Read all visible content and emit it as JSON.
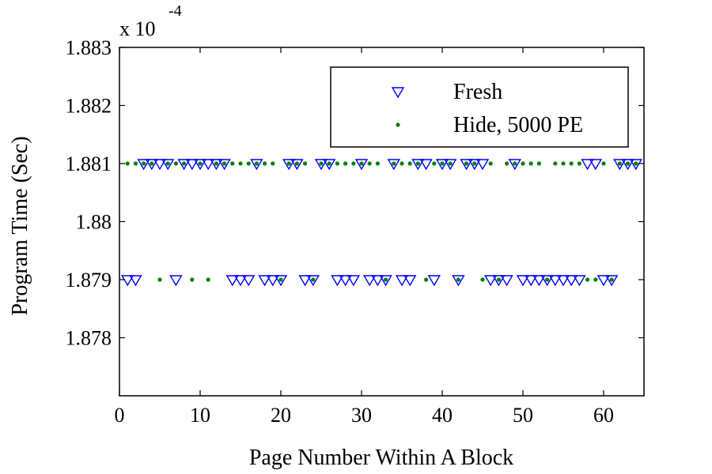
{
  "chart_data": {
    "type": "scatter",
    "xlabel": "Page Number Within A Block",
    "ylabel": "Program Time (Sec)",
    "exponent_label": "x 10",
    "exponent_power": "-4",
    "xlim": [
      0,
      65
    ],
    "ylim": [
      1.877,
      1.883
    ],
    "x_ticks": [
      0,
      10,
      20,
      30,
      40,
      50,
      60
    ],
    "x_tick_labels": [
      "0",
      "10",
      "20",
      "30",
      "40",
      "50",
      "60"
    ],
    "y_ticks": [
      1.878,
      1.879,
      1.88,
      1.881,
      1.882,
      1.883
    ],
    "y_tick_labels": [
      "1.878",
      "1.879",
      "1.88",
      "1.881",
      "1.882",
      "1.883"
    ],
    "grid": false,
    "legend_position": "top-right",
    "series": [
      {
        "name": "Fresh",
        "marker": "triangle-down",
        "color": "#0000ff",
        "points": [
          [
            1,
            1.879
          ],
          [
            2,
            1.879
          ],
          [
            3,
            1.881
          ],
          [
            4,
            1.881
          ],
          [
            5,
            1.881
          ],
          [
            6,
            1.881
          ],
          [
            7,
            1.879
          ],
          [
            8,
            1.881
          ],
          [
            9,
            1.881
          ],
          [
            10,
            1.881
          ],
          [
            11,
            1.881
          ],
          [
            12,
            1.881
          ],
          [
            13,
            1.881
          ],
          [
            14,
            1.879
          ],
          [
            15,
            1.879
          ],
          [
            16,
            1.879
          ],
          [
            17,
            1.881
          ],
          [
            18,
            1.879
          ],
          [
            19,
            1.879
          ],
          [
            20,
            1.879
          ],
          [
            21,
            1.881
          ],
          [
            22,
            1.881
          ],
          [
            23,
            1.879
          ],
          [
            24,
            1.879
          ],
          [
            25,
            1.881
          ],
          [
            26,
            1.881
          ],
          [
            27,
            1.879
          ],
          [
            28,
            1.879
          ],
          [
            29,
            1.879
          ],
          [
            30,
            1.881
          ],
          [
            31,
            1.879
          ],
          [
            32,
            1.879
          ],
          [
            33,
            1.879
          ],
          [
            34,
            1.881
          ],
          [
            35,
            1.879
          ],
          [
            36,
            1.879
          ],
          [
            37,
            1.881
          ],
          [
            38,
            1.881
          ],
          [
            39,
            1.879
          ],
          [
            40,
            1.881
          ],
          [
            41,
            1.881
          ],
          [
            42,
            1.879
          ],
          [
            43,
            1.881
          ],
          [
            44,
            1.881
          ],
          [
            45,
            1.881
          ],
          [
            46,
            1.879
          ],
          [
            47,
            1.879
          ],
          [
            48,
            1.879
          ],
          [
            49,
            1.881
          ],
          [
            50,
            1.879
          ],
          [
            51,
            1.879
          ],
          [
            52,
            1.879
          ],
          [
            53,
            1.879
          ],
          [
            54,
            1.879
          ],
          [
            55,
            1.879
          ],
          [
            56,
            1.879
          ],
          [
            57,
            1.879
          ],
          [
            58,
            1.881
          ],
          [
            59,
            1.881
          ],
          [
            60,
            1.879
          ],
          [
            61,
            1.879
          ],
          [
            62,
            1.881
          ],
          [
            63,
            1.881
          ],
          [
            64,
            1.881
          ]
        ]
      },
      {
        "name": "Hide, 5000 PE",
        "marker": "dot",
        "color": "#007f00",
        "points": [
          [
            1,
            1.881
          ],
          [
            2,
            1.881
          ],
          [
            3,
            1.881
          ],
          [
            4,
            1.881
          ],
          [
            5,
            1.879
          ],
          [
            6,
            1.881
          ],
          [
            7,
            1.881
          ],
          [
            8,
            1.881
          ],
          [
            9,
            1.879
          ],
          [
            10,
            1.881
          ],
          [
            11,
            1.879
          ],
          [
            12,
            1.881
          ],
          [
            13,
            1.881
          ],
          [
            14,
            1.881
          ],
          [
            15,
            1.881
          ],
          [
            16,
            1.881
          ],
          [
            17,
            1.881
          ],
          [
            18,
            1.881
          ],
          [
            19,
            1.881
          ],
          [
            20,
            1.879
          ],
          [
            21,
            1.881
          ],
          [
            22,
            1.881
          ],
          [
            23,
            1.881
          ],
          [
            24,
            1.879
          ],
          [
            25,
            1.881
          ],
          [
            26,
            1.881
          ],
          [
            27,
            1.881
          ],
          [
            28,
            1.881
          ],
          [
            29,
            1.881
          ],
          [
            30,
            1.881
          ],
          [
            31,
            1.881
          ],
          [
            32,
            1.881
          ],
          [
            33,
            1.879
          ],
          [
            34,
            1.881
          ],
          [
            35,
            1.881
          ],
          [
            36,
            1.881
          ],
          [
            37,
            1.881
          ],
          [
            38,
            1.879
          ],
          [
            39,
            1.881
          ],
          [
            40,
            1.881
          ],
          [
            41,
            1.881
          ],
          [
            42,
            1.879
          ],
          [
            43,
            1.881
          ],
          [
            44,
            1.881
          ],
          [
            45,
            1.879
          ],
          [
            46,
            1.881
          ],
          [
            47,
            1.879
          ],
          [
            48,
            1.881
          ],
          [
            49,
            1.881
          ],
          [
            50,
            1.881
          ],
          [
            51,
            1.881
          ],
          [
            52,
            1.881
          ],
          [
            53,
            1.879
          ],
          [
            54,
            1.881
          ],
          [
            55,
            1.881
          ],
          [
            56,
            1.881
          ],
          [
            57,
            1.881
          ],
          [
            58,
            1.879
          ],
          [
            59,
            1.879
          ],
          [
            60,
            1.881
          ],
          [
            61,
            1.879
          ],
          [
            62,
            1.881
          ],
          [
            63,
            1.881
          ],
          [
            64,
            1.881
          ]
        ]
      }
    ]
  }
}
